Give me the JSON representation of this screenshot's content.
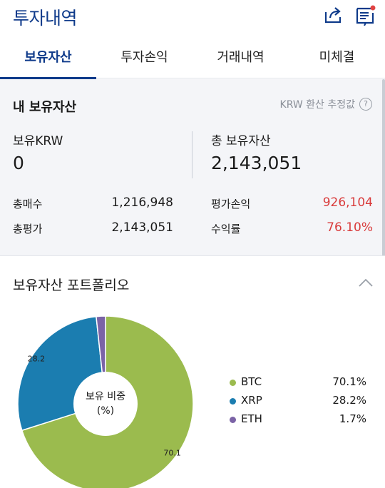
{
  "header": {
    "title": "투자내역"
  },
  "tabs": [
    {
      "label": "보유자산",
      "active": true
    },
    {
      "label": "투자손익",
      "active": false
    },
    {
      "label": "거래내역",
      "active": false
    },
    {
      "label": "미체결",
      "active": false
    }
  ],
  "summary": {
    "heading": "내 보유자산",
    "krw_note": "KRW 환산 추정값",
    "held_krw_label": "보유KRW",
    "held_krw_value": "0",
    "total_assets_label": "총 보유자산",
    "total_assets_value": "2,143,051",
    "total_buy_label": "총매수",
    "total_buy_value": "1,216,948",
    "total_eval_label": "총평가",
    "total_eval_value": "2,143,051",
    "pnl_label": "평가손익",
    "pnl_value": "926,104",
    "return_label": "수익률",
    "return_value": "76.10%"
  },
  "portfolio": {
    "title": "보유자산 포트폴리오",
    "center_line1": "보유 비중",
    "center_line2": "(%)",
    "legend": [
      {
        "name": "BTC",
        "pct": "70.1%"
      },
      {
        "name": "XRP",
        "pct": "28.2%"
      },
      {
        "name": "ETH",
        "pct": "1.7%"
      }
    ]
  },
  "colors": {
    "brand": "#0e3a8a",
    "btc": "#9bbb4e",
    "xrp": "#1b7db0",
    "eth": "#7b63a6",
    "negative_red": "#d93b3b"
  },
  "chart_data": {
    "type": "pie",
    "donut": true,
    "categories": [
      "BTC",
      "XRP",
      "ETH"
    ],
    "values": [
      70.1,
      28.2,
      1.7
    ],
    "data_labels": [
      "70.1",
      "28.2",
      ""
    ],
    "title": "",
    "legend": "right"
  }
}
